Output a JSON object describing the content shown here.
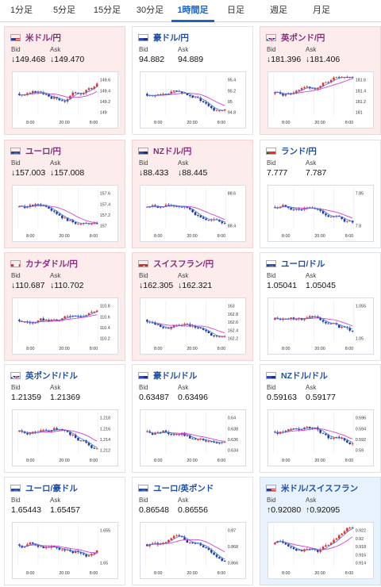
{
  "tabs": [
    "1分足",
    "5分足",
    "15分足",
    "30分足",
    "1時間足",
    "日足",
    "週足",
    "月足"
  ],
  "active_tab": "1時間足",
  "labels": {
    "bid": "Bid",
    "ask": "Ask"
  },
  "cards": [
    {
      "name": "米ドル/円",
      "flag": "us",
      "dir": "down",
      "bid": "↓149.468",
      "ask": "↓149.470",
      "yticks": [
        "149.6",
        "149.4",
        "149.2",
        "149"
      ],
      "xticks": [
        "8:00",
        "20:00",
        "8:00"
      ],
      "trend": "up"
    },
    {
      "name": "豪ドル/円",
      "flag": "au",
      "dir": "none",
      "bid": "94.882",
      "ask": "94.889",
      "yticks": [
        "95.4",
        "95.2",
        "95",
        "94.8"
      ],
      "xticks": [
        "8:00",
        "20:00",
        "8:00"
      ],
      "trend": "down"
    },
    {
      "name": "英ポンド/円",
      "flag": "gb",
      "dir": "down",
      "bid": "↓181.396",
      "ask": "↓181.406",
      "yticks": [
        "181.6",
        "181.4",
        "181.2",
        "181"
      ],
      "xticks": [
        "8:00",
        "20:00",
        "8:00"
      ],
      "trend": "up"
    },
    {
      "name": "ユーロ/円",
      "flag": "eu",
      "dir": "down",
      "bid": "↓157.003",
      "ask": "↓157.008",
      "yticks": [
        "157.6",
        "157.4",
        "157.2",
        "157"
      ],
      "xticks": [
        "8:00",
        "20:00",
        "8:00"
      ],
      "trend": "down"
    },
    {
      "name": "NZドル/円",
      "flag": "nz",
      "dir": "down",
      "bid": "↓88.433",
      "ask": "↓88.445",
      "yticks": [
        "88.6",
        "88.4"
      ],
      "xticks": [
        "8:00",
        "20:00",
        "8:00"
      ],
      "trend": "down"
    },
    {
      "name": "ランド/円",
      "flag": "za",
      "dir": "none",
      "bid": "7.777",
      "ask": "7.787",
      "yticks": [
        "7.85",
        "7.8"
      ],
      "xticks": [
        "8:00",
        "20:00",
        "8:00"
      ],
      "trend": "down"
    },
    {
      "name": "カナダドル/円",
      "flag": "ca",
      "dir": "down",
      "bid": "↓110.687",
      "ask": "↓110.702",
      "yticks": [
        "110.8",
        "110.6",
        "110.4",
        "110.2"
      ],
      "xticks": [
        "8:00",
        "20:00",
        "8:00"
      ],
      "trend": "up"
    },
    {
      "name": "スイスフラン/円",
      "flag": "ch",
      "dir": "down",
      "bid": "↓162.305",
      "ask": "↓162.321",
      "yticks": [
        "163",
        "162.8",
        "162.6",
        "162.4",
        "162.2"
      ],
      "xticks": [
        "8:00",
        "20:00",
        "8:00"
      ],
      "trend": "down"
    },
    {
      "name": "ユーロ/ドル",
      "flag": "eu",
      "dir": "none",
      "bid": "1.05041",
      "ask": "1.05045",
      "yticks": [
        "1.055",
        "1.05"
      ],
      "xticks": [
        "8:00",
        "20:00",
        "8:00"
      ],
      "trend": "down"
    },
    {
      "name": "英ポンド/ドル",
      "flag": "gb",
      "dir": "none",
      "bid": "1.21359",
      "ask": "1.21369",
      "yticks": [
        "1.218",
        "1.216",
        "1.214",
        "1.212"
      ],
      "xticks": [
        "8:00",
        "20:00",
        "8:00"
      ],
      "trend": "down"
    },
    {
      "name": "豪ドル/ドル",
      "flag": "au",
      "dir": "none",
      "bid": "0.63487",
      "ask": "0.63496",
      "yticks": [
        "0.64",
        "0.638",
        "0.636",
        "0.634"
      ],
      "xticks": [
        "8:00",
        "20:00",
        "8:00"
      ],
      "trend": "down"
    },
    {
      "name": "NZドル/ドル",
      "flag": "nz",
      "dir": "none",
      "bid": "0.59163",
      "ask": "0.59177",
      "yticks": [
        "0.596",
        "0.594",
        "0.592",
        "0.59"
      ],
      "xticks": [
        "8:00",
        "20:00",
        "8:00"
      ],
      "trend": "down"
    },
    {
      "name": "ユーロ/豪ドル",
      "flag": "eu",
      "dir": "none",
      "bid": "1.65443",
      "ask": "1.65457",
      "yticks": [
        "1.655",
        "1.65"
      ],
      "xticks": [
        "8:00",
        "20:00",
        "8:00"
      ],
      "trend": "flat"
    },
    {
      "name": "ユーロ/英ポンド",
      "flag": "eu",
      "dir": "none",
      "bid": "0.86548",
      "ask": "0.86556",
      "yticks": [
        "0.87",
        "0.868",
        "0.866"
      ],
      "xticks": [
        "8:00",
        "20:00",
        "8:00"
      ],
      "trend": "down"
    },
    {
      "name": "米ドル/スイスフラン",
      "flag": "us",
      "dir": "up",
      "bid": "↑0.92080",
      "ask": "↑0.92095",
      "yticks": [
        "0.922",
        "0.92",
        "0.918",
        "0.916",
        "0.914"
      ],
      "xticks": [
        "8:00",
        "20:00",
        "8:00"
      ],
      "trend": "up"
    }
  ],
  "colors": {
    "up_candle": "#e03030",
    "down_candle": "#1c3aa8",
    "ma_long": "#d23ad2",
    "ma_short": "#4a7fd6",
    "accent": "#1a63c2"
  }
}
